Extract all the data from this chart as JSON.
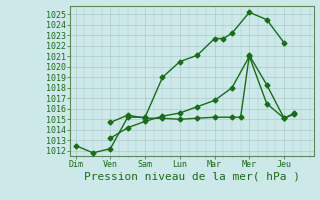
{
  "xlabel": "Pression niveau de la mer( hPa )",
  "xtick_labels": [
    "Dim",
    "Ven",
    "Sam",
    "Lun",
    "Mar",
    "Mer",
    "Jeu"
  ],
  "ylim": [
    1011.5,
    1025.8
  ],
  "yticks": [
    1012,
    1013,
    1014,
    1015,
    1016,
    1017,
    1018,
    1019,
    1020,
    1021,
    1022,
    1023,
    1024,
    1025
  ],
  "background_color": "#cce8e8",
  "grid_color": "#aacccc",
  "line_color": "#1a6b1a",
  "line1_x": [
    0,
    0.5,
    1.0,
    1.5,
    2.0,
    2.5,
    3.0,
    3.5,
    4.0,
    4.25,
    4.5,
    5.0,
    5.5,
    6.0
  ],
  "line1_y": [
    1012.5,
    1011.8,
    1012.2,
    1015.2,
    1015.2,
    1019.0,
    1020.5,
    1021.1,
    1022.7,
    1022.7,
    1023.2,
    1025.2,
    1024.5,
    1022.3
  ],
  "line2_x": [
    1.0,
    1.5,
    2.0,
    2.5,
    3.0,
    3.5,
    4.0,
    4.5,
    4.75,
    5.0,
    5.5,
    6.0,
    6.3
  ],
  "line2_y": [
    1014.7,
    1015.4,
    1015.1,
    1015.1,
    1015.0,
    1015.1,
    1015.2,
    1015.2,
    1015.2,
    1021.1,
    1018.3,
    1015.1,
    1015.5
  ],
  "line3_x": [
    1.0,
    1.5,
    2.0,
    2.5,
    3.0,
    3.5,
    4.0,
    4.5,
    5.0,
    5.5,
    6.0,
    6.3
  ],
  "line3_y": [
    1013.2,
    1014.2,
    1014.8,
    1015.3,
    1015.6,
    1016.2,
    1016.8,
    1018.0,
    1021.0,
    1016.5,
    1015.1,
    1015.6
  ],
  "markersize": 2.5,
  "linewidth": 1.0,
  "xlabel_fontsize": 8,
  "tick_fontsize": 6,
  "xlabel_color": "#1a6b1a",
  "tick_color": "#1a6b1a",
  "xlim": [
    -0.15,
    6.85
  ]
}
